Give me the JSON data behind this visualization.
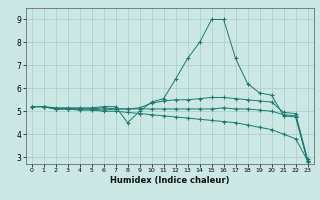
{
  "title": "",
  "xlabel": "Humidex (Indice chaleur)",
  "bg_color": "#cce8e5",
  "grid_color": "#a8ccc8",
  "line_color": "#1a7a6e",
  "xlim": [
    -0.5,
    23.5
  ],
  "ylim": [
    2.7,
    9.5
  ],
  "xticks": [
    0,
    1,
    2,
    3,
    4,
    5,
    6,
    7,
    8,
    9,
    10,
    11,
    12,
    13,
    14,
    15,
    16,
    17,
    18,
    19,
    20,
    21,
    22,
    23
  ],
  "yticks": [
    3,
    4,
    5,
    6,
    7,
    8,
    9
  ],
  "line1_x": [
    0,
    1,
    2,
    3,
    4,
    5,
    6,
    7,
    8,
    9,
    10,
    11,
    12,
    13,
    14,
    15,
    16,
    17,
    18,
    19,
    20,
    21,
    22,
    23
  ],
  "line1_y": [
    5.2,
    5.2,
    5.15,
    5.15,
    5.15,
    5.15,
    5.2,
    5.2,
    4.5,
    5.0,
    5.4,
    5.55,
    6.4,
    7.3,
    8.0,
    9.0,
    9.0,
    7.3,
    6.2,
    5.8,
    5.7,
    4.8,
    4.75,
    2.85
  ],
  "line2_x": [
    0,
    1,
    2,
    3,
    4,
    5,
    6,
    7,
    8,
    9,
    10,
    11,
    12,
    13,
    14,
    15,
    16,
    17,
    18,
    19,
    20,
    21,
    22,
    23
  ],
  "line2_y": [
    5.2,
    5.2,
    5.1,
    5.1,
    5.1,
    5.1,
    5.15,
    5.1,
    5.1,
    5.15,
    5.35,
    5.45,
    5.5,
    5.5,
    5.55,
    5.6,
    5.6,
    5.55,
    5.5,
    5.45,
    5.4,
    4.95,
    4.9,
    2.9
  ],
  "line3_x": [
    0,
    1,
    2,
    3,
    4,
    5,
    6,
    7,
    8,
    9,
    10,
    11,
    12,
    13,
    14,
    15,
    16,
    17,
    18,
    19,
    20,
    21,
    22,
    23
  ],
  "line3_y": [
    5.2,
    5.2,
    5.1,
    5.1,
    5.1,
    5.1,
    5.05,
    5.1,
    5.1,
    5.1,
    5.1,
    5.1,
    5.1,
    5.1,
    5.1,
    5.1,
    5.15,
    5.1,
    5.1,
    5.05,
    5.0,
    4.85,
    4.8,
    2.8
  ],
  "line4_x": [
    0,
    1,
    2,
    3,
    4,
    5,
    6,
    7,
    8,
    9,
    10,
    11,
    12,
    13,
    14,
    15,
    16,
    17,
    18,
    19,
    20,
    21,
    22,
    23
  ],
  "line4_y": [
    5.2,
    5.2,
    5.1,
    5.1,
    5.05,
    5.05,
    5.0,
    5.0,
    4.95,
    4.9,
    4.85,
    4.8,
    4.75,
    4.7,
    4.65,
    4.6,
    4.55,
    4.5,
    4.4,
    4.3,
    4.2,
    4.0,
    3.8,
    2.85
  ]
}
